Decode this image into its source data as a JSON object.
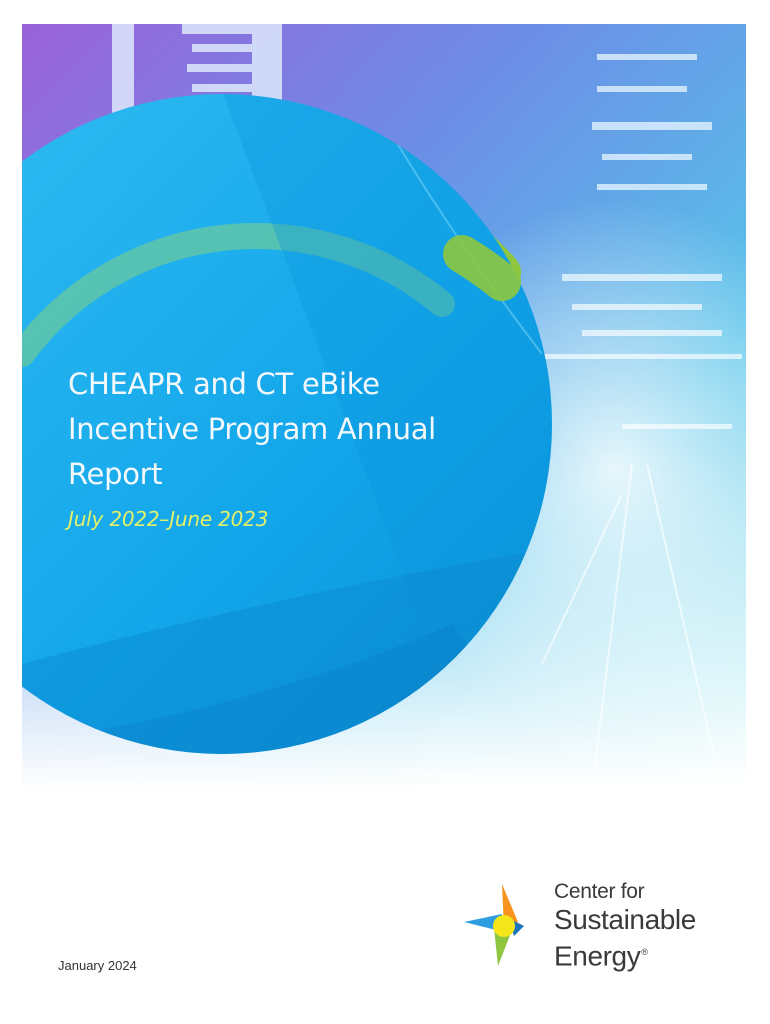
{
  "report": {
    "title": "CHEAPR and CT eBike Incentive Program Annual Report",
    "period": "July 2022–June 2023",
    "date": "January 2024"
  },
  "logo": {
    "line1": "Center for",
    "line2": "Sustainable",
    "line3": "Energy",
    "mark": "®",
    "icon": "pinwheel-logo-icon"
  },
  "colors": {
    "circle_blue": "#1aa3e8",
    "arc_green": "#8ec63f",
    "subtitle_yellow": "#e3f06a",
    "city_purple": "#9a6fd6",
    "city_teal": "#5fd0e0"
  }
}
